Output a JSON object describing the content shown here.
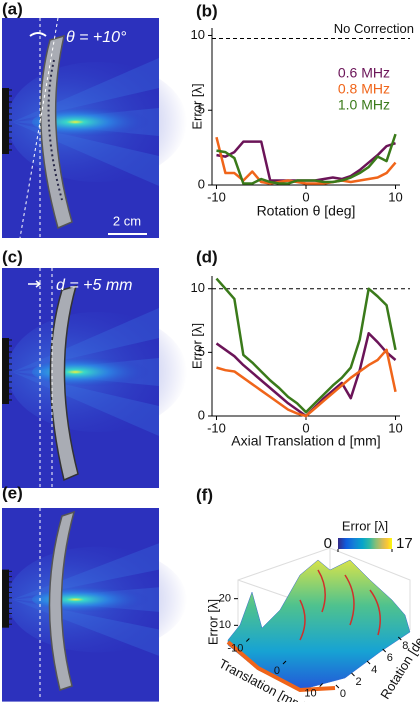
{
  "panels": {
    "a": {
      "label": "(a)",
      "annotation": "θ = +10°",
      "scale_bar": "2 cm"
    },
    "c": {
      "label": "(c)",
      "annotation": "d = +5 mm"
    },
    "e": {
      "label": "(e)"
    }
  },
  "chart_data": [
    {
      "label": "(b)",
      "type": "line",
      "x": [
        -10,
        -9,
        -8,
        -7,
        -6,
        -5,
        -4,
        -3,
        -2,
        -1,
        0,
        1,
        2,
        3,
        4,
        5,
        6,
        7,
        8,
        9,
        10
      ],
      "xlim": [
        -10.5,
        10.5
      ],
      "xticks": [
        -10,
        0,
        10
      ],
      "ylim": [
        0,
        10.5
      ],
      "yticks": [
        0,
        5,
        10
      ],
      "xlabel": "Rotation θ [deg]",
      "ylabel": "Error [λ]",
      "reference": {
        "value": 9.8,
        "label": "No Correction"
      },
      "legend": "upper right",
      "series": [
        {
          "name": "0.6 MHz",
          "color": "#6b1458",
          "values": [
            2.0,
            1.9,
            2.2,
            2.9,
            2.9,
            2.9,
            0.3,
            0.3,
            0.3,
            0.3,
            0.3,
            0.3,
            0.4,
            0.5,
            0.4,
            0.6,
            1.0,
            1.5,
            2.0,
            2.6,
            2.8
          ]
        },
        {
          "name": "0.8 MHz",
          "color": "#f0651a",
          "values": [
            3.2,
            0.8,
            0.8,
            0.3,
            0.9,
            0.2,
            0.1,
            0.2,
            0.3,
            0.2,
            0.1,
            0.1,
            0.1,
            0.2,
            0.3,
            0.2,
            0.3,
            0.4,
            0.5,
            0.8,
            1.5
          ]
        },
        {
          "name": "1.0 MHz",
          "color": "#3a7a1a",
          "values": [
            2.3,
            2.2,
            1.8,
            0.1,
            0.1,
            0.4,
            0.2,
            0.1,
            0.1,
            0.3,
            0.3,
            0.3,
            0.2,
            0.2,
            0.3,
            0.5,
            0.8,
            1.2,
            1.9,
            1.6,
            3.4
          ]
        }
      ]
    },
    {
      "label": "(d)",
      "type": "line",
      "x": [
        -10,
        -9,
        -8,
        -7,
        -6,
        -5,
        -4,
        -3,
        -2,
        -1,
        0,
        1,
        2,
        3,
        4,
        5,
        6,
        7,
        8,
        9,
        10
      ],
      "xlim": [
        -10.5,
        10.5
      ],
      "xticks": [
        -10,
        0,
        10
      ],
      "ylim": [
        0,
        11
      ],
      "yticks": [
        0,
        5,
        10
      ],
      "xlabel": "Axial Translation d [mm]",
      "ylabel": "Error [λ]",
      "reference": {
        "value": 10
      },
      "series": [
        {
          "color": "#6b1458",
          "values": [
            5.7,
            5.2,
            4.7,
            4.0,
            3.4,
            2.8,
            2.2,
            1.6,
            1.0,
            0.5,
            0.0,
            0.7,
            1.4,
            2.0,
            2.6,
            1.4,
            3.6,
            6.5,
            5.8,
            5.0,
            4.4
          ]
        },
        {
          "color": "#f0651a",
          "values": [
            3.8,
            3.6,
            3.5,
            3.0,
            2.5,
            2.0,
            1.5,
            1.0,
            0.5,
            0.2,
            0.0,
            0.6,
            1.2,
            1.8,
            2.4,
            3.0,
            3.5,
            4.0,
            4.4,
            5.2,
            1.9
          ]
        },
        {
          "color": "#3a7a1a",
          "values": [
            10.8,
            10.0,
            9.2,
            4.8,
            4.2,
            3.5,
            2.8,
            2.2,
            1.5,
            1.0,
            0.3,
            1.0,
            1.7,
            2.4,
            3.0,
            3.8,
            6.0,
            10.0,
            9.4,
            8.7,
            5.2
          ]
        }
      ]
    },
    {
      "label": "(f)",
      "type": "surface",
      "xlabel": "Translation [mm]",
      "ylabel": "Rotation [deg]",
      "zlabel": "Error [λ]",
      "xlim": [
        -12,
        12
      ],
      "xticks": [
        -10,
        0,
        10
      ],
      "ylim": [
        -0.5,
        9.5
      ],
      "yticks": [
        0,
        2,
        4,
        6,
        8
      ],
      "zlim": [
        0,
        24
      ],
      "zticks": [
        10,
        20
      ],
      "colorbar": {
        "label": "Error [λ]",
        "lim": [
          0,
          17
        ],
        "ticks": [
          0,
          17
        ]
      }
    }
  ]
}
